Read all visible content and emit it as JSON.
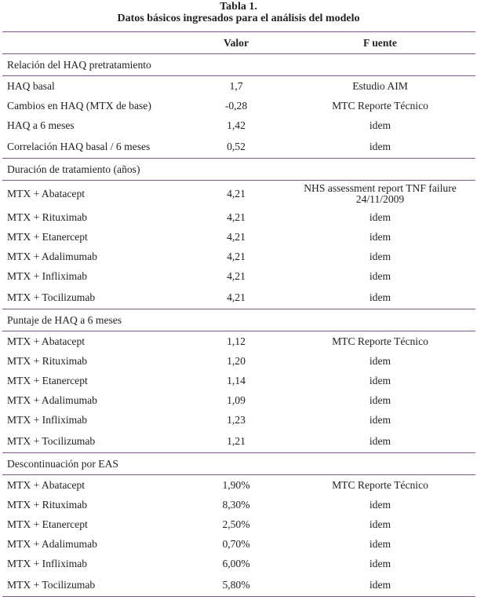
{
  "title": "Tabla 1.",
  "subtitle": "Datos básicos ingresados para el análisis del modelo",
  "headers": [
    "",
    "Valor",
    "F uente"
  ],
  "sections": [
    {
      "name": "Relación del HAQ pretratamiento",
      "rows": [
        {
          "label": "HAQ basal",
          "value": "1,7",
          "source": "Estudio AIM"
        },
        {
          "label": "Cambios en HAQ (MTX de base)",
          "value": "-0,28",
          "source": "MTC Reporte Técnico"
        },
        {
          "label": "HAQ a 6 meses",
          "value": "1,42",
          "source": "idem"
        },
        {
          "label": "Correlación HAQ basal / 6 meses",
          "value": "0,52",
          "source": "idem"
        }
      ]
    },
    {
      "name": "Duración de tratamiento (años)",
      "rows": [
        {
          "label": "MTX + Abatacept",
          "value": "4,21",
          "source": "NHS assessment report TNF failure 24/11/2009"
        },
        {
          "label": "MTX + Rituximab",
          "value": "4,21",
          "source": "idem"
        },
        {
          "label": "MTX + Etanercept",
          "value": "4,21",
          "source": "idem"
        },
        {
          "label": "MTX + Adalimumab",
          "value": "4,21",
          "source": "idem"
        },
        {
          "label": "MTX + Infliximab",
          "value": "4,21",
          "source": "idem"
        },
        {
          "label": "MTX + Tocilizumab",
          "value": "4,21",
          "source": "idem"
        }
      ]
    },
    {
      "name": "Puntaje de HAQ a 6 meses",
      "rows": [
        {
          "label": "MTX + Abatacept",
          "value": "1,12",
          "source": "MTC Reporte Técnico"
        },
        {
          "label": "MTX + Rituximab",
          "value": "1,20",
          "source": "idem"
        },
        {
          "label": "MTX + Etanercept",
          "value": "1,14",
          "source": "idem"
        },
        {
          "label": "MTX + Adalimumab",
          "value": "1,09",
          "source": "idem"
        },
        {
          "label": "MTX + Infliximab",
          "value": "1,23",
          "source": "idem"
        },
        {
          "label": "MTX + Tocilizumab",
          "value": "1,21",
          "source": "idem"
        }
      ]
    },
    {
      "name": "Descontinuación por EAS",
      "rows": [
        {
          "label": "MTX + Abatacept",
          "value": "1,90%",
          "source": "MTC Reporte Técnico"
        },
        {
          "label": "MTX + Rituximab",
          "value": "8,30%",
          "source": "idem"
        },
        {
          "label": "MTX + Etanercept",
          "value": "2,50%",
          "source": "idem"
        },
        {
          "label": "MTX + Adalimumab",
          "value": "0,70%",
          "source": "idem"
        },
        {
          "label": "MTX + Infliximab",
          "value": "6,00%",
          "source": "idem"
        },
        {
          "label": "MTX + Tocilizumab",
          "value": "5,80%",
          "source": "idem"
        }
      ]
    }
  ]
}
